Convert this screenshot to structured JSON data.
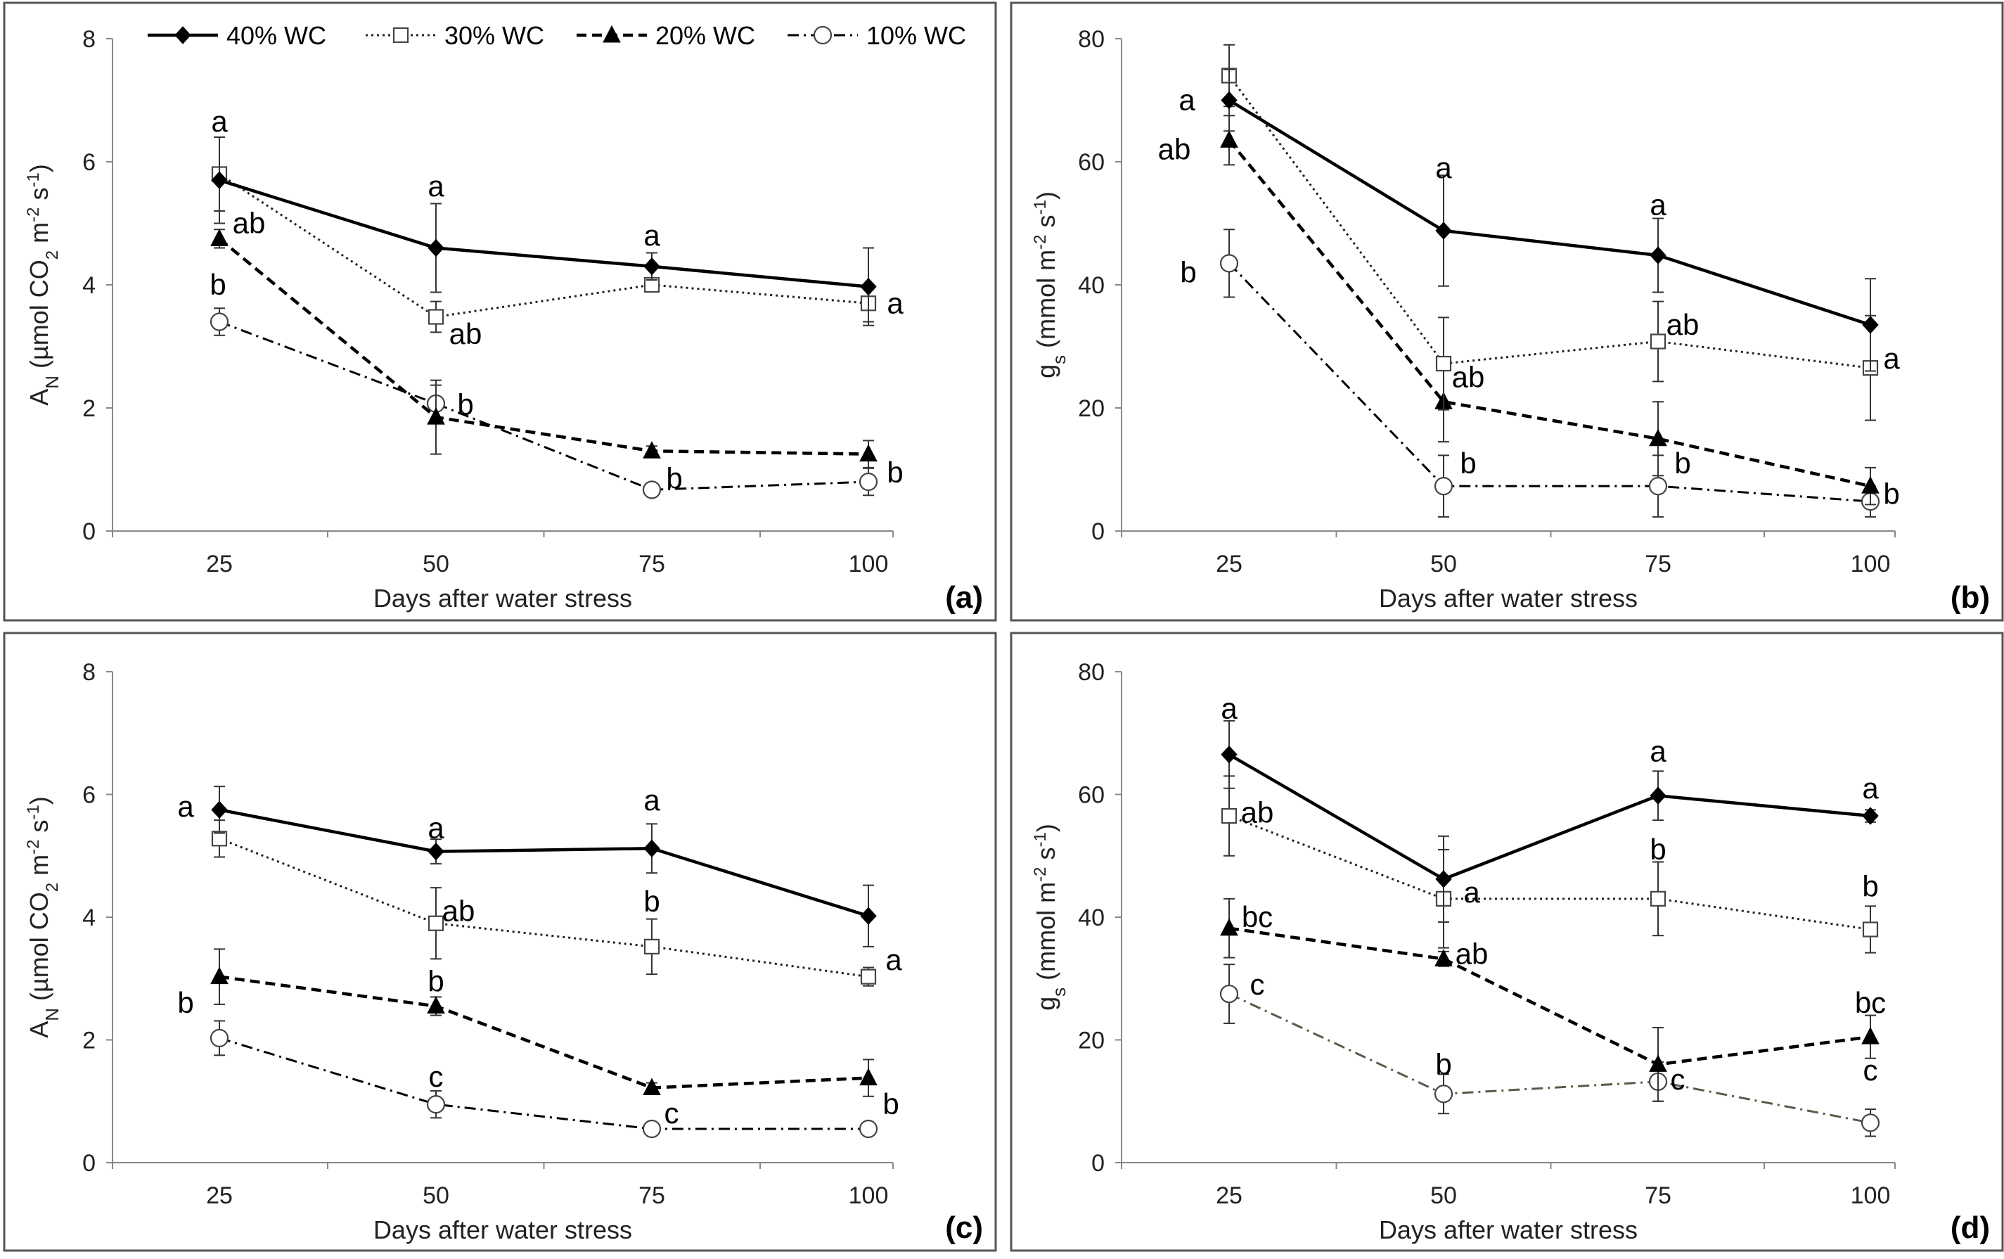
{
  "legend": [
    {
      "name": "40% WC",
      "marker": "diamond-filled",
      "line": "solid"
    },
    {
      "name": "30% WC",
      "marker": "square-open",
      "line": "dotted"
    },
    {
      "name": "20% WC",
      "marker": "triangle-filled",
      "line": "dashed"
    },
    {
      "name": "10% WC",
      "marker": "circle-open",
      "line": "dashdot"
    }
  ],
  "chart_data": [
    {
      "type": "line",
      "panel_label": "(a)",
      "xlabel": "Days after water stress",
      "ylabel_main": "A",
      "ylabel_sub": "N",
      "ylabel_unit_parts": [
        " (µmol CO",
        "2",
        " m",
        "-2",
        " s",
        "-1",
        ")"
      ],
      "x": [
        25,
        50,
        75,
        100
      ],
      "x_ticks": [
        "25",
        "50",
        "75",
        "100"
      ],
      "ylim": [
        0,
        8
      ],
      "y_ticks": [
        "0",
        "2",
        "4",
        "6",
        "8"
      ],
      "series": [
        {
          "name": "40% WC",
          "values": [
            5.7,
            4.6,
            4.3,
            3.97
          ],
          "errors": [
            0.7,
            0.72,
            0.22,
            0.63
          ],
          "letters": [
            {
              "text": "a",
              "x": 25,
              "value": 6.65
            },
            {
              "text": "a",
              "x": 50,
              "value": 5.6
            },
            {
              "text": "a",
              "x": 75,
              "value": 4.8
            },
            {
              "text": "a",
              "x": 100,
              "value": 3.7
            }
          ]
        },
        {
          "name": "30% WC",
          "values": [
            5.8,
            3.48,
            4.0,
            3.7
          ],
          "errors": [
            0.6,
            0.25,
            0.1,
            0.3
          ],
          "letters": [
            {
              "text": "ab",
              "x": 25,
              "value": 5.0
            },
            {
              "text": "ab",
              "x": 50,
              "value": 3.2
            }
          ]
        },
        {
          "name": "20% WC",
          "values": [
            4.75,
            1.85,
            1.3,
            1.25
          ],
          "errors": [
            0.15,
            0.6,
            0.08,
            0.22
          ],
          "letters": [
            {
              "text": "b",
              "x": 25,
              "value": 4.0
            },
            {
              "text": "b",
              "x": 50,
              "value": 2.05
            }
          ]
        },
        {
          "name": "10% WC",
          "values": [
            3.4,
            2.07,
            0.67,
            0.8
          ],
          "errors": [
            0.22,
            0.3,
            0.1,
            0.22
          ],
          "letters": [
            {
              "text": "b",
              "x": 75,
              "value": 0.85
            },
            {
              "text": "b",
              "x": 100,
              "value": 0.95
            }
          ]
        }
      ]
    },
    {
      "type": "line",
      "panel_label": "(b)",
      "xlabel": "Days after water stress",
      "ylabel_main": "g",
      "ylabel_sub": "s",
      "ylabel_unit_parts": [
        " (mmol m",
        "-2",
        " s",
        "-1",
        ")"
      ],
      "x": [
        25,
        50,
        75,
        100
      ],
      "x_ticks": [
        "25",
        "50",
        "75",
        "100"
      ],
      "ylim": [
        0,
        80
      ],
      "y_ticks": [
        "0",
        "20",
        "40",
        "60",
        "80"
      ],
      "series": [
        {
          "name": "40% WC",
          "values": [
            70,
            48.8,
            44.8,
            33.5
          ],
          "errors": [
            5,
            9,
            6,
            7.5
          ],
          "letters": [
            {
              "text": "a",
              "x": 25,
              "value": 70
            },
            {
              "text": "a",
              "x": 50,
              "value": 59
            },
            {
              "text": "a",
              "x": 75,
              "value": 53
            },
            {
              "text": "a",
              "x": 100,
              "value": 28
            }
          ]
        },
        {
          "name": "30% WC",
          "values": [
            74,
            27.2,
            30.8,
            26.5
          ],
          "errors": [
            5,
            7.5,
            6.5,
            8.5
          ],
          "letters": [
            {
              "text": "ab",
              "x": 75,
              "value": 33.5
            }
          ]
        },
        {
          "name": "20% WC",
          "values": [
            63.5,
            21,
            15,
            7.3
          ],
          "errors": [
            4,
            6.5,
            6,
            3
          ],
          "letters": [
            {
              "text": "ab",
              "x": 25,
              "value": 62
            },
            {
              "text": "ab",
              "x": 50,
              "value": 25
            },
            {
              "text": "b",
              "x": 100,
              "value": 6
            }
          ]
        },
        {
          "name": "10% WC",
          "values": [
            43.5,
            7.3,
            7.3,
            4.8
          ],
          "errors": [
            5.5,
            5,
            5,
            2.5
          ],
          "letters": [
            {
              "text": "b",
              "x": 25,
              "value": 42
            },
            {
              "text": "b",
              "x": 50,
              "value": 11
            },
            {
              "text": "b",
              "x": 75,
              "value": 11
            }
          ]
        }
      ]
    },
    {
      "type": "line",
      "panel_label": "(c)",
      "xlabel": "Days after water stress",
      "ylabel_main": "A",
      "ylabel_sub": "N",
      "ylabel_unit_parts": [
        " (µmol CO",
        "2",
        " m",
        "-2",
        " s",
        "-1",
        ")"
      ],
      "x": [
        25,
        50,
        75,
        100
      ],
      "x_ticks": [
        "25",
        "50",
        "75",
        "100"
      ],
      "ylim": [
        0,
        8
      ],
      "y_ticks": [
        "0",
        "2",
        "4",
        "6",
        "8"
      ],
      "series": [
        {
          "name": "40% WC",
          "values": [
            5.75,
            5.07,
            5.12,
            4.02
          ],
          "errors": [
            0.38,
            0.2,
            0.4,
            0.5
          ],
          "letters": [
            {
              "text": "a",
              "x": 25,
              "value": 5.8
            },
            {
              "text": "a",
              "x": 50,
              "value": 5.45
            },
            {
              "text": "a",
              "x": 75,
              "value": 5.9
            },
            {
              "text": "a",
              "x": 100,
              "value": 3.3
            }
          ]
        },
        {
          "name": "30% WC",
          "values": [
            5.28,
            3.9,
            3.52,
            3.03
          ],
          "errors": [
            0.3,
            0.58,
            0.45,
            0.15
          ],
          "letters": [
            {
              "text": "ab",
              "x": 50,
              "value": 4.1
            },
            {
              "text": "b",
              "x": 75,
              "value": 4.25
            }
          ]
        },
        {
          "name": "20% WC",
          "values": [
            3.03,
            2.55,
            1.22,
            1.38
          ],
          "errors": [
            0.45,
            0.15,
            0.08,
            0.3
          ],
          "letters": [
            {
              "text": "b",
              "x": 25,
              "value": 2.6
            },
            {
              "text": "b",
              "x": 50,
              "value": 2.95
            },
            {
              "text": "b",
              "x": 100,
              "value": 0.95
            }
          ]
        },
        {
          "name": "10% WC",
          "values": [
            2.03,
            0.95,
            0.55,
            0.55
          ],
          "errors": [
            0.28,
            0.22,
            0.05,
            0.05
          ],
          "letters": [
            {
              "text": "c",
              "x": 50,
              "value": 1.4
            },
            {
              "text": "c",
              "x": 75,
              "value": 0.8
            }
          ]
        }
      ]
    },
    {
      "type": "line",
      "panel_label": "(d)",
      "xlabel": "Days after water stress",
      "ylabel_main": "g",
      "ylabel_sub": "s",
      "ylabel_unit_parts": [
        " (mmol m",
        "-2",
        " s",
        "-1",
        ")"
      ],
      "x": [
        25,
        50,
        75,
        100
      ],
      "x_ticks": [
        "25",
        "50",
        "75",
        "100"
      ],
      "ylim": [
        0,
        80
      ],
      "y_ticks": [
        "0",
        "20",
        "40",
        "60",
        "80"
      ],
      "series": [
        {
          "name": "40% WC",
          "values": [
            66.5,
            46.2,
            59.8,
            56.5
          ],
          "errors": [
            5.5,
            7,
            4,
            1
          ],
          "letters": [
            {
              "text": "a",
              "x": 25,
              "value": 74
            },
            {
              "text": "a",
              "x": 50,
              "value": 44
            },
            {
              "text": "a",
              "x": 75,
              "value": 67
            },
            {
              "text": "a",
              "x": 100,
              "value": 61
            }
          ]
        },
        {
          "name": "30% WC",
          "values": [
            56.5,
            43,
            43,
            38
          ],
          "errors": [
            6.5,
            8,
            6,
            3.8
          ],
          "letters": [
            {
              "text": "ab",
              "x": 25,
              "value": 57
            },
            {
              "text": "b",
              "x": 75,
              "value": 51
            },
            {
              "text": "b",
              "x": 100,
              "value": 45
            }
          ]
        },
        {
          "name": "20% WC",
          "values": [
            38.2,
            33.2,
            16,
            20.5
          ],
          "errors": [
            4.8,
            1.2,
            6,
            3.5
          ],
          "letters": [
            {
              "text": "bc",
              "x": 25,
              "value": 40
            },
            {
              "text": "ab",
              "x": 50,
              "value": 34
            },
            {
              "text": "bc",
              "x": 100,
              "value": 26
            }
          ]
        },
        {
          "name": "10% WC",
          "values": [
            27.5,
            11.2,
            13.2,
            6.5
          ],
          "errors": [
            4.8,
            3.2,
            3.2,
            2.2
          ],
          "letters": [
            {
              "text": "c",
              "x": 25,
              "value": 29
            },
            {
              "text": "b",
              "x": 50,
              "value": 16
            },
            {
              "text": "c",
              "x": 75,
              "value": 13.5
            },
            {
              "text": "c",
              "x": 100,
              "value": 15
            }
          ]
        }
      ]
    }
  ]
}
